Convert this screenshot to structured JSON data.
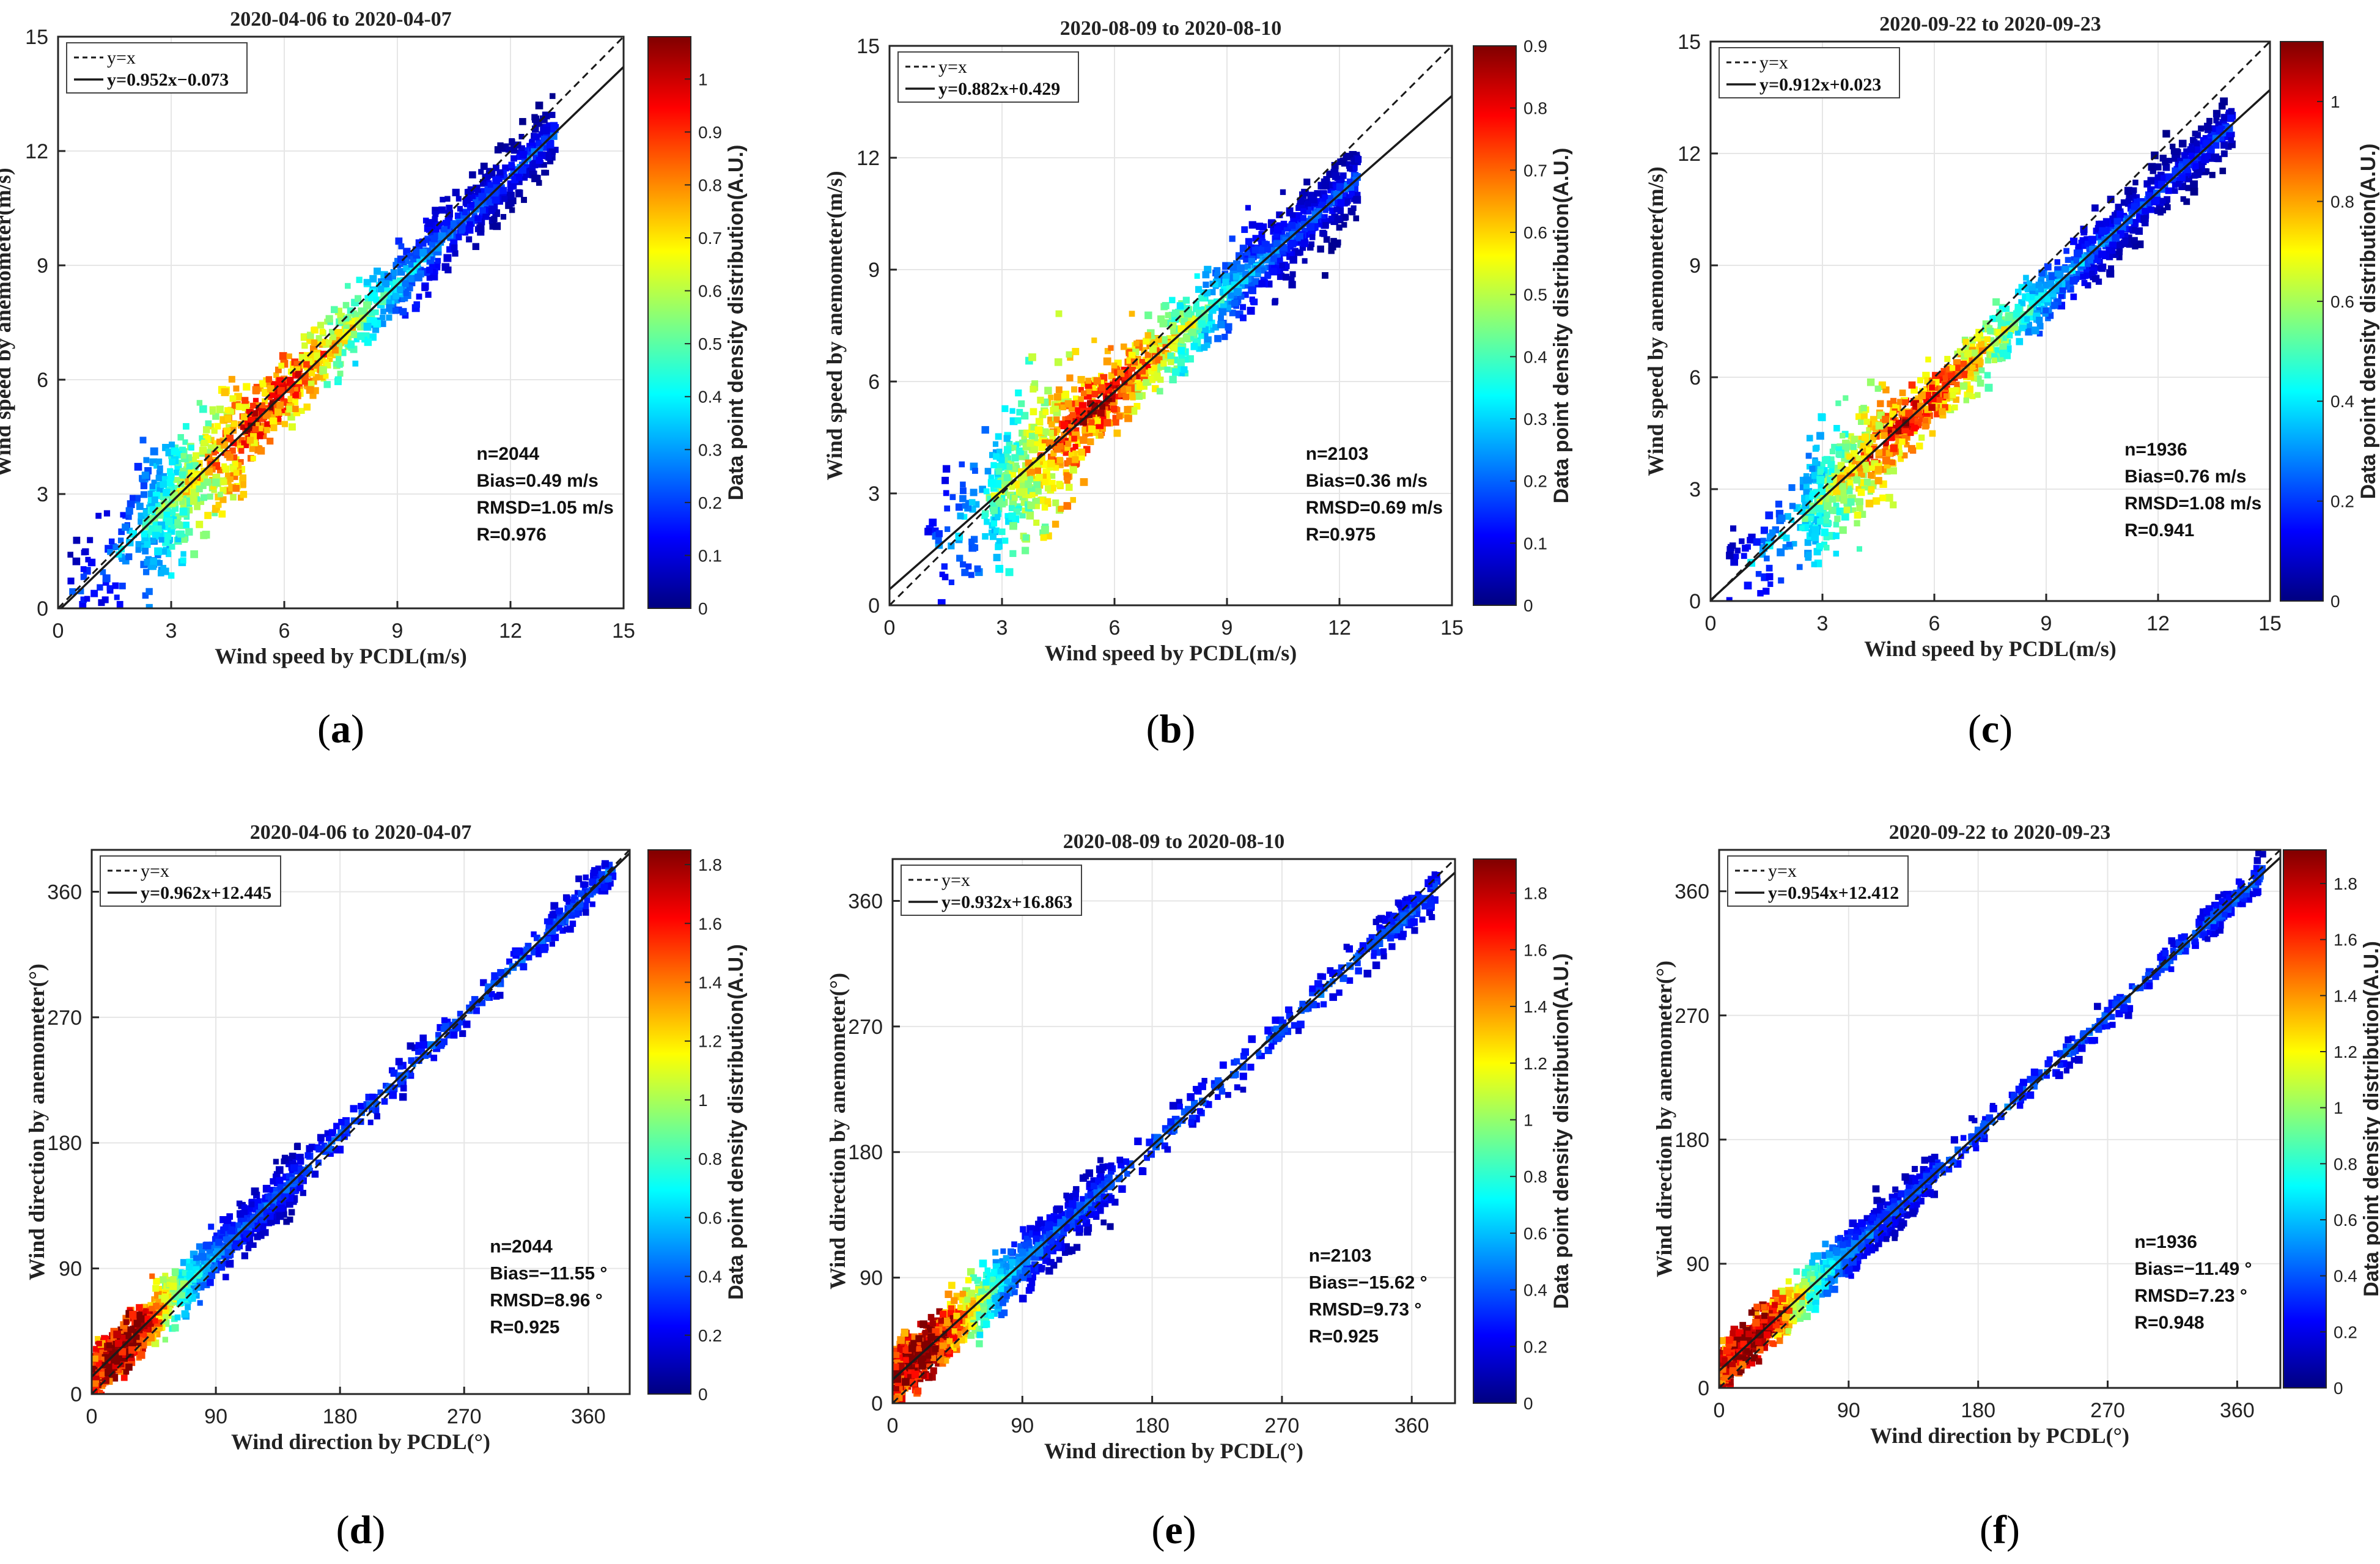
{
  "colors": {
    "axis": "#262626",
    "grid": "#e6e6e6",
    "fit_line": "#1a1a1a",
    "ref_line": "#1a1a1a",
    "colormap_jet": [
      "#000080",
      "#0000ff",
      "#0080ff",
      "#00ffff",
      "#80ff80",
      "#ffff00",
      "#ff8000",
      "#ff0000",
      "#800000"
    ]
  },
  "chart_data": [
    {
      "panel": "a",
      "label": "a",
      "type": "scatter",
      "title": "2020-04-06 to 2020-04-07",
      "xlabel": "Wind speed by PCDL(m/s)",
      "ylabel": "Wind speed by anemometer(m/s)",
      "xlim": [
        0,
        15
      ],
      "ylim": [
        0,
        15
      ],
      "xticks": [
        0,
        3,
        6,
        9,
        12,
        15
      ],
      "yticks": [
        0,
        3,
        6,
        9,
        12,
        15
      ],
      "legend": [
        "y=x",
        "y=0.952x−0.073"
      ],
      "fit": {
        "slope": 0.952,
        "intercept": -0.073
      },
      "stats": [
        "n=2044",
        "Bias=0.49 m/s",
        "RMSD=1.05 m/s",
        "R=0.976"
      ],
      "colorbar": {
        "label": "Data point density distribution(A.U.)",
        "min": 0,
        "max": 1.08,
        "ticks": [
          0,
          0.1,
          0.2,
          0.3,
          0.4,
          0.5,
          0.6,
          0.7,
          0.8,
          0.9,
          1
        ],
        "tick_labels": [
          "0",
          "0.1",
          "0.2",
          "0.3",
          "0.4",
          "0.5",
          "0.6",
          "0.7",
          "0.8",
          "0.9",
          "1"
        ]
      },
      "cloud": {
        "x_range": [
          0.3,
          13.2
        ],
        "spread": 0.45,
        "kind": "speed"
      }
    },
    {
      "panel": "b",
      "label": "b",
      "type": "scatter",
      "title": "2020-08-09 to 2020-08-10",
      "xlabel": "Wind speed by PCDL(m/s)",
      "ylabel": "Wind speed by anemometer(m/s)",
      "xlim": [
        0,
        15
      ],
      "ylim": [
        0,
        15
      ],
      "xticks": [
        0,
        3,
        6,
        9,
        12,
        15
      ],
      "yticks": [
        0,
        3,
        6,
        9,
        12,
        15
      ],
      "legend": [
        "y=x",
        "y=0.882x+0.429"
      ],
      "fit": {
        "slope": 0.882,
        "intercept": 0.429
      },
      "stats": [
        "n=2103",
        "Bias=0.36 m/s",
        "RMSD=0.69 m/s",
        "R=0.975"
      ],
      "colorbar": {
        "label": "Data point density distribution(A.U.)",
        "min": 0,
        "max": 0.9,
        "ticks": [
          0,
          0.1,
          0.2,
          0.3,
          0.4,
          0.5,
          0.6,
          0.7,
          0.8,
          0.9
        ],
        "tick_labels": [
          "0",
          "0.1",
          "0.2",
          "0.3",
          "0.4",
          "0.5",
          "0.6",
          "0.7",
          "0.8",
          "0.9"
        ]
      },
      "cloud": {
        "x_range": [
          1.0,
          12.5
        ],
        "spread": 0.5,
        "kind": "speed"
      }
    },
    {
      "panel": "c",
      "label": "c",
      "type": "scatter",
      "title": "2020-09-22 to 2020-09-23",
      "xlabel": "Wind speed by PCDL(m/s)",
      "ylabel": "Wind speed by anemometer(m/s)",
      "xlim": [
        0,
        15
      ],
      "ylim": [
        0,
        15
      ],
      "xticks": [
        0,
        3,
        6,
        9,
        12,
        15
      ],
      "yticks": [
        0,
        3,
        6,
        9,
        12,
        15
      ],
      "legend": [
        "y=x",
        "y=0.912x+0.023"
      ],
      "fit": {
        "slope": 0.912,
        "intercept": 0.023
      },
      "stats": [
        "n=1936",
        "Bias=0.76 m/s",
        "RMSD=1.08 m/s",
        "R=0.941"
      ],
      "colorbar": {
        "label": "Data point density distribution(A.U.)",
        "min": 0,
        "max": 1.12,
        "ticks": [
          0,
          0.2,
          0.4,
          0.6,
          0.8,
          1
        ],
        "tick_labels": [
          "0",
          "0.2",
          "0.4",
          "0.6",
          "0.8",
          "1"
        ]
      },
      "cloud": {
        "x_range": [
          0.5,
          14.0
        ],
        "spread": 0.4,
        "kind": "speed"
      }
    },
    {
      "panel": "d",
      "label": "d",
      "type": "scatter",
      "title": "2020-04-06 to 2020-04-07",
      "xlabel": "Wind direction by PCDL(°)",
      "ylabel": "Wind direction by anemometer(°)",
      "xlim": [
        0,
        390
      ],
      "ylim": [
        0,
        390
      ],
      "xticks": [
        0,
        90,
        180,
        270,
        360
      ],
      "yticks": [
        0,
        90,
        180,
        270,
        360
      ],
      "legend": [
        "y=x",
        "y=0.962x+12.445"
      ],
      "fit": {
        "slope": 0.962,
        "intercept": 12.445
      },
      "stats": [
        "n=2044",
        "Bias=−11.55 °",
        "RMSD=8.96 °",
        "R=0.925"
      ],
      "colorbar": {
        "label": "Data point density distribution(A.U.)",
        "min": 0,
        "max": 1.85,
        "ticks": [
          0,
          0.2,
          0.4,
          0.6,
          0.8,
          1,
          1.2,
          1.4,
          1.6,
          1.8
        ],
        "tick_labels": [
          "0",
          "0.2",
          "0.4",
          "0.6",
          "0.8",
          "1",
          "1.2",
          "1.4",
          "1.6",
          "1.8"
        ]
      },
      "cloud": {
        "x_range": [
          2,
          380
        ],
        "spread": 9,
        "kind": "direction"
      }
    },
    {
      "panel": "e",
      "label": "e",
      "type": "scatter",
      "title": "2020-08-09 to 2020-08-10",
      "xlabel": "Wind direction by PCDL(°)",
      "ylabel": "Wind direction by anemometer(°)",
      "xlim": [
        0,
        390
      ],
      "ylim": [
        0,
        390
      ],
      "xticks": [
        0,
        90,
        180,
        270,
        360
      ],
      "yticks": [
        0,
        90,
        180,
        270,
        360
      ],
      "legend": [
        "y=x",
        "y=0.932x+16.863"
      ],
      "fit": {
        "slope": 0.932,
        "intercept": 16.863
      },
      "stats": [
        "n=2103",
        "Bias=−15.62 °",
        "RMSD=9.73 °",
        "R=0.925"
      ],
      "colorbar": {
        "label": "Data point density distribution(A.U.)",
        "min": 0,
        "max": 1.92,
        "ticks": [
          0,
          0.2,
          0.4,
          0.6,
          0.8,
          1,
          1.2,
          1.4,
          1.6,
          1.8
        ],
        "tick_labels": [
          "0",
          "0.2",
          "0.4",
          "0.6",
          "0.8",
          "1",
          "1.2",
          "1.4",
          "1.6",
          "1.8"
        ]
      },
      "cloud": {
        "x_range": [
          2,
          380
        ],
        "spread": 10,
        "kind": "direction"
      }
    },
    {
      "panel": "f",
      "label": "f",
      "type": "scatter",
      "title": "2020-09-22 to 2020-09-23",
      "xlabel": "Wind direction by PCDL(°)",
      "ylabel": "Wind direction by anemometer(°)",
      "xlim": [
        0,
        390
      ],
      "ylim": [
        0,
        390
      ],
      "xticks": [
        0,
        90,
        180,
        270,
        360
      ],
      "yticks": [
        0,
        90,
        180,
        270,
        360
      ],
      "legend": [
        "y=x",
        "y=0.954x+12.412"
      ],
      "fit": {
        "slope": 0.954,
        "intercept": 12.412
      },
      "stats": [
        "n=1936",
        "Bias=−11.49 °",
        "RMSD=7.23 °",
        "R=0.948"
      ],
      "colorbar": {
        "label": "Data point density distribution(A.U.)",
        "min": 0,
        "max": 1.92,
        "ticks": [
          0,
          0.2,
          0.4,
          0.6,
          0.8,
          1,
          1.2,
          1.4,
          1.6,
          1.8
        ],
        "tick_labels": [
          "0",
          "0.2",
          "0.4",
          "0.6",
          "0.8",
          "1",
          "1.2",
          "1.4",
          "1.6",
          "1.8"
        ]
      },
      "cloud": {
        "x_range": [
          2,
          380
        ],
        "spread": 8,
        "kind": "direction"
      }
    }
  ]
}
